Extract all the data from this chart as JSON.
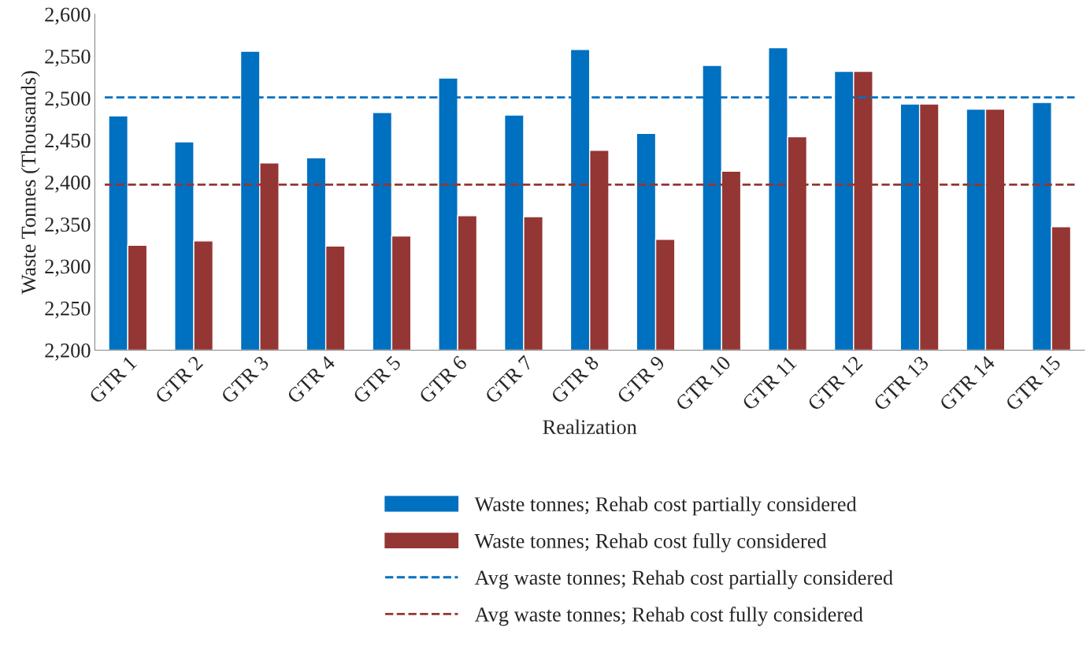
{
  "chart_data": {
    "type": "bar",
    "xlabel": "Realization",
    "ylabel": "Waste Tonnes (Thousands)",
    "categories": [
      "GTR 1",
      "GTR 2",
      "GTR 3",
      "GTR 4",
      "GTR 5",
      "GTR 6",
      "GTR 7",
      "GTR 8",
      "GTR 9",
      "GTR 10",
      "GTR 11",
      "GTR 12",
      "GTR 13",
      "GTR 14",
      "GTR 15"
    ],
    "series": [
      {
        "name": "Waste tonnes; Rehab cost partially considered",
        "color": "#0070c0",
        "values": [
          2479,
          2448,
          2556,
          2429,
          2483,
          2524,
          2480,
          2558,
          2458,
          2539,
          2560,
          2532,
          2493,
          2487,
          2495
        ]
      },
      {
        "name": "Waste tonnes; Rehab cost fully considered",
        "color": "#943634",
        "values": [
          2325,
          2330,
          2423,
          2324,
          2336,
          2360,
          2359,
          2438,
          2332,
          2413,
          2454,
          2532,
          2493,
          2487,
          2347
        ]
      }
    ],
    "ref_lines": [
      {
        "axis": "y",
        "value": 2501,
        "label": "Avg waste tonnes; Rehab cost partially considered",
        "color": "#0070c0",
        "line_style": "dashed"
      },
      {
        "axis": "y",
        "value": 2397,
        "label": "Avg waste tonnes; Rehab cost fully considered",
        "color": "#943634",
        "line_style": "dashed"
      }
    ],
    "ylim": [
      2200,
      2600
    ],
    "yticks": [
      {
        "value": 2200,
        "label": "2,200"
      },
      {
        "value": 2250,
        "label": "2,250"
      },
      {
        "value": 2300,
        "label": "2,300"
      },
      {
        "value": 2350,
        "label": "2,350"
      },
      {
        "value": 2400,
        "label": "2,400"
      },
      {
        "value": 2450,
        "label": "2,450"
      },
      {
        "value": 2500,
        "label": "2,500"
      },
      {
        "value": 2550,
        "label": "2,550"
      },
      {
        "value": 2600,
        "label": "2,600"
      }
    ],
    "grid": false,
    "legend": "bottom"
  }
}
